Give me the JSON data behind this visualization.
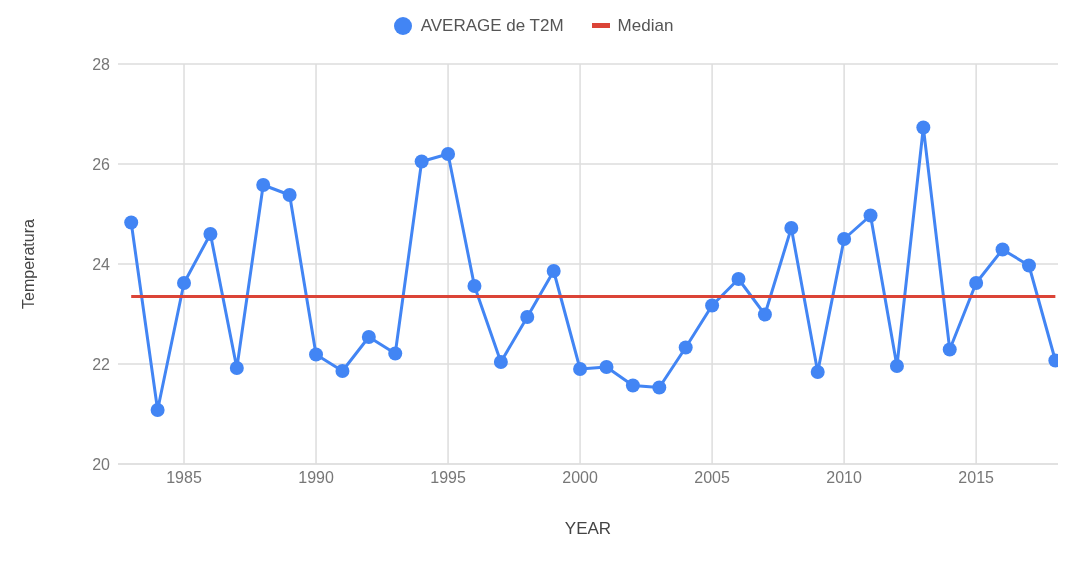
{
  "chart_data": {
    "type": "line",
    "xlabel": "YEAR",
    "ylabel": "Temperatura",
    "x": [
      1983,
      1984,
      1985,
      1986,
      1987,
      1988,
      1989,
      1990,
      1991,
      1992,
      1993,
      1994,
      1995,
      1996,
      1997,
      1998,
      1999,
      2000,
      2001,
      2002,
      2003,
      2004,
      2005,
      2006,
      2007,
      2008,
      2009,
      2010,
      2011,
      2012,
      2013,
      2014,
      2015,
      2016,
      2017,
      2018
    ],
    "series": [
      {
        "name": "AVERAGE de T2M",
        "color": "#4285f4",
        "values": [
          24.83,
          21.08,
          23.62,
          24.6,
          21.92,
          25.58,
          25.38,
          22.19,
          21.86,
          22.54,
          22.21,
          26.05,
          26.2,
          23.56,
          22.04,
          22.94,
          23.86,
          21.9,
          21.94,
          21.57,
          21.53,
          22.33,
          23.17,
          23.7,
          22.99,
          24.72,
          21.84,
          24.5,
          24.97,
          21.96,
          26.73,
          22.29,
          23.62,
          24.29,
          23.97,
          22.07
        ]
      },
      {
        "name": "Median",
        "color": "#db4437",
        "marker": "none",
        "values": [
          23.35,
          23.35,
          23.35,
          23.35,
          23.35,
          23.35,
          23.35,
          23.35,
          23.35,
          23.35,
          23.35,
          23.35,
          23.35,
          23.35,
          23.35,
          23.35,
          23.35,
          23.35,
          23.35,
          23.35,
          23.35,
          23.35,
          23.35,
          23.35,
          23.35,
          23.35,
          23.35,
          23.35,
          23.35,
          23.35,
          23.35,
          23.35,
          23.35,
          23.35,
          23.35,
          23.35
        ]
      }
    ],
    "xlim": [
      1982.5,
      2018.1
    ],
    "xticks": [
      1985,
      1990,
      1995,
      2000,
      2005,
      2010,
      2015
    ],
    "ylim": [
      20,
      28
    ],
    "yticks": [
      20,
      22,
      24,
      26,
      28
    ],
    "grid": true,
    "legend": "top",
    "marker": "circle",
    "line_style": "solid"
  }
}
